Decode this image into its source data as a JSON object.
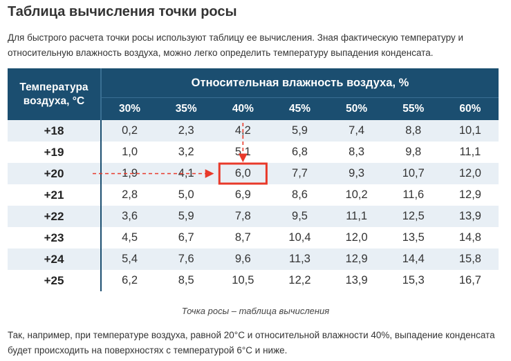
{
  "title": "Таблица вычисления точки росы",
  "intro": "Для быстрого расчета точки росы используют таблицу ее вычисления. Зная фактическую температуру и относительную влажность воздуха, можно легко определить температуру выпадения конденсата.",
  "table": {
    "temp_header_line1": "Температура",
    "temp_header_line2": "воздуха, °С",
    "humidity_header": "Относительная влажность воздуха, %",
    "columns": [
      "30%",
      "35%",
      "40%",
      "45%",
      "50%",
      "55%",
      "60%"
    ],
    "rows": [
      {
        "temp": "+18",
        "values": [
          "0,2",
          "2,3",
          "4,2",
          "5,9",
          "7,4",
          "8,8",
          "10,1"
        ]
      },
      {
        "temp": "+19",
        "values": [
          "1,0",
          "3,2",
          "5,1",
          "6,8",
          "8,3",
          "9,8",
          "11,1"
        ]
      },
      {
        "temp": "+20",
        "values": [
          "1,9",
          "4,1",
          "6,0",
          "7,7",
          "9,3",
          "10,7",
          "12,0"
        ]
      },
      {
        "temp": "+21",
        "values": [
          "2,8",
          "5,0",
          "6,9",
          "8,6",
          "10,2",
          "11,6",
          "12,9"
        ]
      },
      {
        "temp": "+22",
        "values": [
          "3,6",
          "5,9",
          "7,8",
          "9,5",
          "11,1",
          "12,5",
          "13,9"
        ]
      },
      {
        "temp": "+23",
        "values": [
          "4,5",
          "6,7",
          "8,7",
          "10,4",
          "12,0",
          "13,5",
          "14,8"
        ]
      },
      {
        "temp": "+24",
        "values": [
          "5,4",
          "7,6",
          "9,6",
          "11,3",
          "12,9",
          "14,4",
          "15,8"
        ]
      },
      {
        "temp": "+25",
        "values": [
          "6,2",
          "8,5",
          "10,5",
          "12,2",
          "13,9",
          "15,3",
          "16,7"
        ]
      }
    ],
    "highlight": {
      "row": 2,
      "col": 2
    },
    "colors": {
      "header_bg": "#1b4e70",
      "stripe": "#e8eff5",
      "highlight": "#e8392a"
    }
  },
  "caption": "Точка росы – таблица вычисления",
  "outro": "Так, например, при температуре воздуха, равной 20°С и относительной влажности 40%, выпадение конденсата будет происходить на поверхностях с температурой 6°С и ниже."
}
